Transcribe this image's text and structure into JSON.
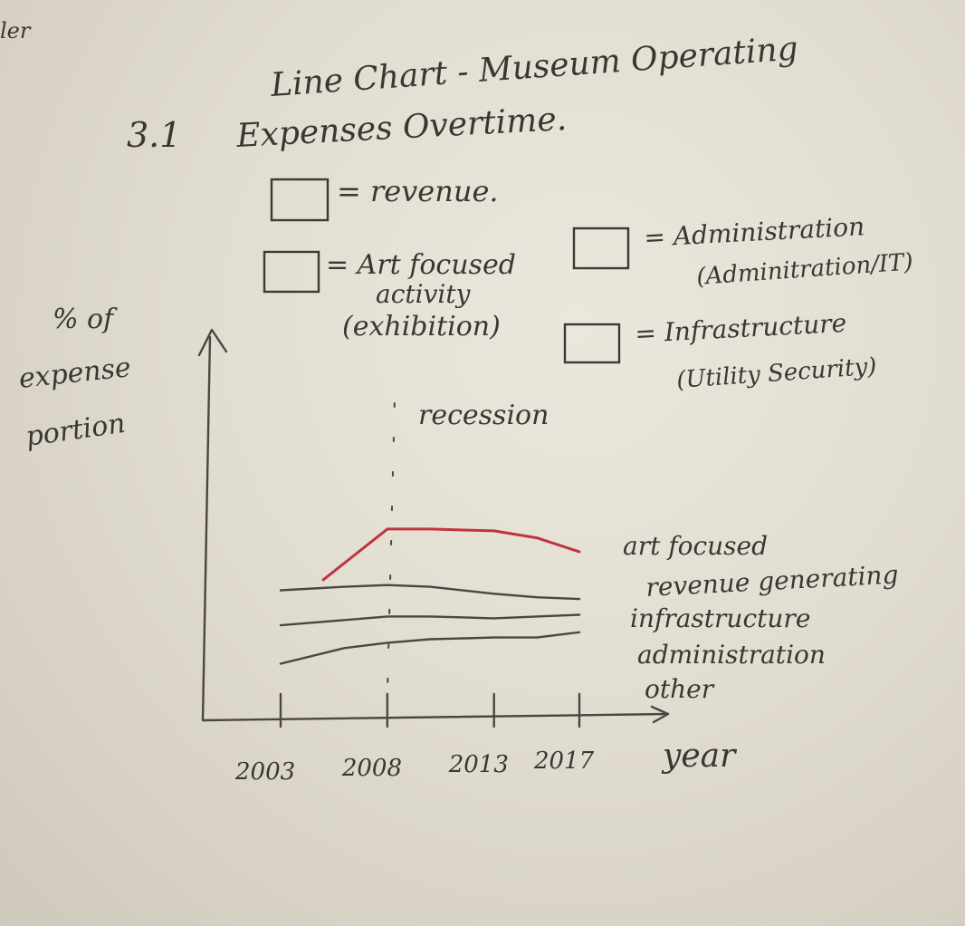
{
  "page": {
    "corner_text": "ler",
    "figure_number": "3.1"
  },
  "legend": [
    {
      "key": "revenue",
      "text": "= revenue."
    },
    {
      "key": "art",
      "text": "= Art focused",
      "sub1": "activity",
      "sub2": "(exhibition)"
    },
    {
      "key": "admin",
      "text": "= Administration",
      "sub1": "(Adminitration/IT)"
    },
    {
      "key": "infra",
      "text": "= Infrastructure",
      "sub1": "(Utility Security)"
    }
  ],
  "chart_data": {
    "type": "line",
    "title_line1": "Line Chart - Museum Operating",
    "title_line2": "Expenses Overtime.",
    "ylabel_lines": [
      "% of",
      "expense",
      "portion"
    ],
    "xlabel": "year",
    "x_ticks": [
      2003,
      2008,
      2013,
      2017
    ],
    "x_tick_labels": [
      "2003",
      "2008",
      "2013",
      "2017"
    ],
    "xlim": [
      2003,
      2017
    ],
    "ylim": [
      0,
      100
    ],
    "grid": false,
    "annotation": {
      "text": "recession",
      "x": 2008
    },
    "series": [
      {
        "name": "art focused",
        "name_line2": "revenue generating",
        "color": "#c0333f",
        "x": [
          2005,
          2008,
          2010,
          2013,
          2015,
          2017
        ],
        "y": [
          70,
          99,
          99,
          98,
          94,
          86
        ]
      },
      {
        "name": "infrastructure",
        "color": "#4a4641",
        "x": [
          2003,
          2006,
          2008,
          2010,
          2013,
          2015,
          2017
        ],
        "y": [
          64,
          66,
          67,
          66,
          62,
          60,
          59
        ]
      },
      {
        "name": "administration",
        "color": "#4a4641",
        "x": [
          2003,
          2006,
          2008,
          2010,
          2013,
          2015,
          2017
        ],
        "y": [
          44,
          47,
          49,
          49,
          48,
          49,
          50
        ]
      },
      {
        "name": "other",
        "color": "#4a4641",
        "x": [
          2003,
          2006,
          2008,
          2010,
          2013,
          2015,
          2017
        ],
        "y": [
          22,
          31,
          34,
          36,
          37,
          37,
          40
        ]
      }
    ]
  }
}
